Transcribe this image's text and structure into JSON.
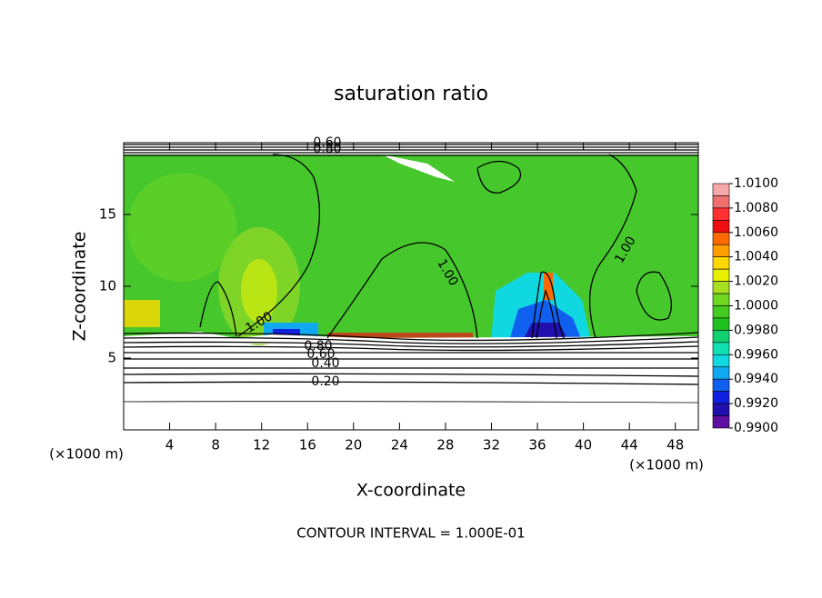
{
  "chart_data": {
    "type": "contour",
    "title": "saturation ratio",
    "x_label": "X-coordinate",
    "y_label": "Z-coordinate",
    "x_scale_label": "(×1000 m)",
    "y_scale_label": "(×1000 m)",
    "footnote": "CONTOUR INTERVAL = 1.000E-01",
    "xlim": [
      0,
      50
    ],
    "ylim": [
      0,
      20
    ],
    "xticks": [
      4,
      8,
      12,
      16,
      20,
      24,
      28,
      32,
      36,
      40,
      44,
      48
    ],
    "yticks": [
      5,
      10,
      15
    ],
    "contour_labels": [
      "0.60",
      "0.80",
      "1.00",
      "1.00",
      "1.00",
      "0.80",
      "0.60",
      "0.40",
      "0.20"
    ],
    "colorbar": {
      "lim": [
        0.99,
        1.01
      ],
      "ticks": [
        {
          "value": 1.01,
          "label": "1.0100"
        },
        {
          "value": 1.008,
          "label": "1.0080"
        },
        {
          "value": 1.006,
          "label": "1.0060"
        },
        {
          "value": 1.004,
          "label": "1.0040"
        },
        {
          "value": 1.002,
          "label": "1.0020"
        },
        {
          "value": 1.0,
          "label": "1.0000"
        },
        {
          "value": 0.998,
          "label": "0.9980"
        },
        {
          "value": 0.996,
          "label": "0.9960"
        },
        {
          "value": 0.994,
          "label": "0.9940"
        },
        {
          "value": 0.992,
          "label": "0.9920"
        },
        {
          "value": 0.99,
          "label": "0.9900"
        }
      ],
      "colors": [
        "#f7a8a8",
        "#f07070",
        "#ff3030",
        "#ee1010",
        "#ff6a00",
        "#ffa000",
        "#ffd800",
        "#e8f000",
        "#a8e020",
        "#70d820",
        "#44cc22",
        "#20c020",
        "#10d070",
        "#10e0b0",
        "#10d8e0",
        "#10a8f0",
        "#1060f0",
        "#1020e0",
        "#2010b0",
        "#6010a0"
      ]
    }
  }
}
